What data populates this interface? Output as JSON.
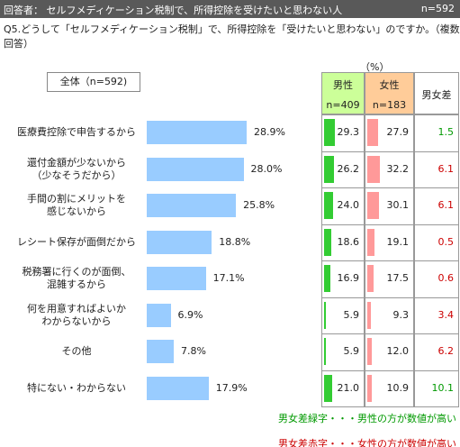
{
  "header": {
    "respondent": "回答者： セルフメディケーション税制で、所得控除を受けたいと思わない人",
    "n": "n=592",
    "question": "Q5.どうして「セルフメディケーション税制」で、所得控除を「受けたいと思わない」のですか。（複数回答）"
  },
  "chart_data": {
    "type": "bar",
    "orientation": "horizontal",
    "legend": "全体（n=592)",
    "categories": [
      "医療費控除で申告するから",
      "還付金額が少ないから\n（少なそうだから）",
      "手間の割にメリットを\n感じないから",
      "レシート保存が面倒だから",
      "税務署に行くのが面倒、\n混雑するから",
      "何を用意すればよいか\nわからないから",
      "その他",
      "特にない・わからない"
    ],
    "values": [
      28.9,
      28.0,
      25.8,
      18.8,
      17.1,
      6.9,
      7.8,
      17.9
    ],
    "value_labels": [
      "28.9%",
      "28.0%",
      "25.8%",
      "18.8%",
      "17.1%",
      "6.9%",
      "7.8%",
      "17.9%"
    ],
    "color": "#99ccff"
  },
  "table": {
    "unit": "（%）",
    "male": {
      "name": "男性",
      "n": "n=409",
      "header_color": "#ccff99",
      "bar_color": "#33cc33",
      "values": [
        29.3,
        26.2,
        24.0,
        18.6,
        16.9,
        5.9,
        5.9,
        21.0
      ],
      "value_labels": [
        "29.3",
        "26.2",
        "24.0",
        "18.6",
        "16.9",
        "5.9",
        "5.9",
        "21.0"
      ]
    },
    "female": {
      "name": "女性",
      "n": "n=183",
      "header_color": "#ffcc99",
      "bar_color": "#ff9999",
      "values": [
        27.9,
        32.2,
        30.1,
        19.1,
        17.5,
        9.3,
        12.0,
        10.9
      ],
      "value_labels": [
        "27.9",
        "32.2",
        "30.1",
        "19.1",
        "17.5",
        "9.3",
        "12.0",
        "10.9"
      ]
    },
    "diff": {
      "name": "男女差",
      "values": [
        1.5,
        6.1,
        6.1,
        0.5,
        0.6,
        3.4,
        6.2,
        10.1
      ],
      "value_labels": [
        "1.5",
        "6.1",
        "6.1",
        "0.5",
        "0.6",
        "3.4",
        "6.2",
        "10.1"
      ],
      "male_higher_color": "#009900",
      "female_higher_color": "#cc0000"
    },
    "notes": [
      "男女差緑字・・・男性の方が数値が高い",
      "男女差赤字・・・女性の方が数値が高い"
    ]
  }
}
